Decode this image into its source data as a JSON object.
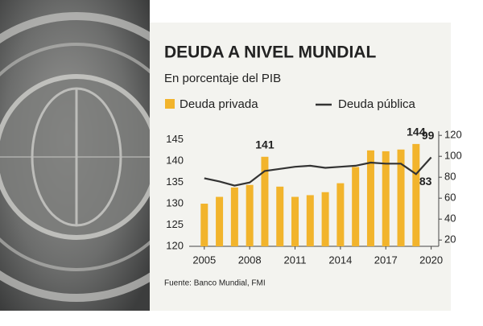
{
  "chart_data": {
    "type": "bar",
    "title": "DEUDA A NIVEL MUNDIAL",
    "subtitle": "En porcentaje del PIB",
    "source": "Fuente: Banco Mundial, FMI",
    "x": [
      2005,
      2006,
      2007,
      2008,
      2009,
      2010,
      2011,
      2012,
      2013,
      2014,
      2015,
      2016,
      2017,
      2018,
      2019,
      2020
    ],
    "series": [
      {
        "name": "Deuda privada",
        "type": "bar",
        "color": "#f2b42c",
        "values": [
          130,
          131.6,
          133.8,
          134.4,
          141,
          134,
          131.6,
          132,
          132.7,
          134.8,
          138.6,
          142.5,
          142.3,
          142.7,
          144,
          null
        ],
        "value_labels": [
          null,
          null,
          null,
          null,
          "141",
          null,
          null,
          null,
          null,
          null,
          null,
          null,
          null,
          null,
          "144",
          null
        ]
      },
      {
        "name": "Deuda pública",
        "type": "line",
        "axis": "y2",
        "color": "#333333",
        "values": [
          79,
          76,
          72,
          75,
          86,
          88,
          90,
          91,
          89,
          90,
          91,
          94,
          93,
          93,
          83,
          99
        ],
        "value_labels": [
          null,
          null,
          null,
          null,
          null,
          null,
          null,
          null,
          null,
          null,
          null,
          null,
          null,
          null,
          "83",
          "99"
        ]
      }
    ],
    "xlim": [
      2004,
      2020.5
    ],
    "xticks": [
      2005,
      2008,
      2011,
      2014,
      2017,
      2020
    ],
    "ylim": [
      120,
      147
    ],
    "yticks": [
      120,
      125,
      130,
      135,
      140,
      145
    ],
    "y2lim": [
      14,
      124
    ],
    "y2ticks": [
      20,
      40,
      60,
      80,
      100,
      120
    ],
    "grid": false
  }
}
